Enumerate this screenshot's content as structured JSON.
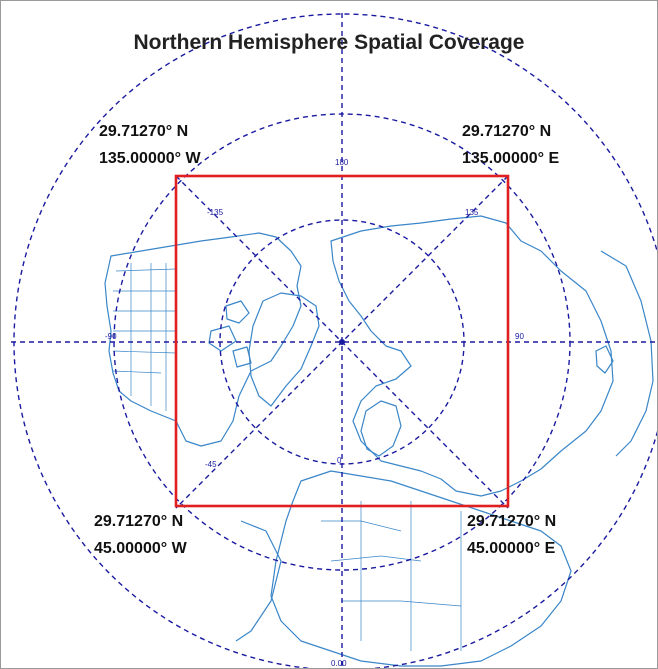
{
  "title": "Northern Hemisphere Spatial Coverage",
  "corners": {
    "top_left": {
      "lat": "29.71270° N",
      "lon": "135.00000° W"
    },
    "top_right": {
      "lat": "29.71270° N",
      "lon": "135.00000° E"
    },
    "bottom_left": {
      "lat": "29.71270° N",
      "lon": "45.00000° W"
    },
    "bottom_right": {
      "lat": "29.71270° N",
      "lon": "45.00000° E"
    }
  },
  "grid_labels": {
    "top": "180",
    "upper_left": "-135",
    "upper_right": "135",
    "left": "-90",
    "right": "90",
    "lower_left": "-45",
    "center_lower": "0",
    "bottom": "0.00"
  },
  "colors": {
    "graticule": "#1a1aa0",
    "coverage_box": "#e02020",
    "coastline": "#3a86c8",
    "label_text": "#111111"
  },
  "icons": [
    "north-pole-marker"
  ]
}
